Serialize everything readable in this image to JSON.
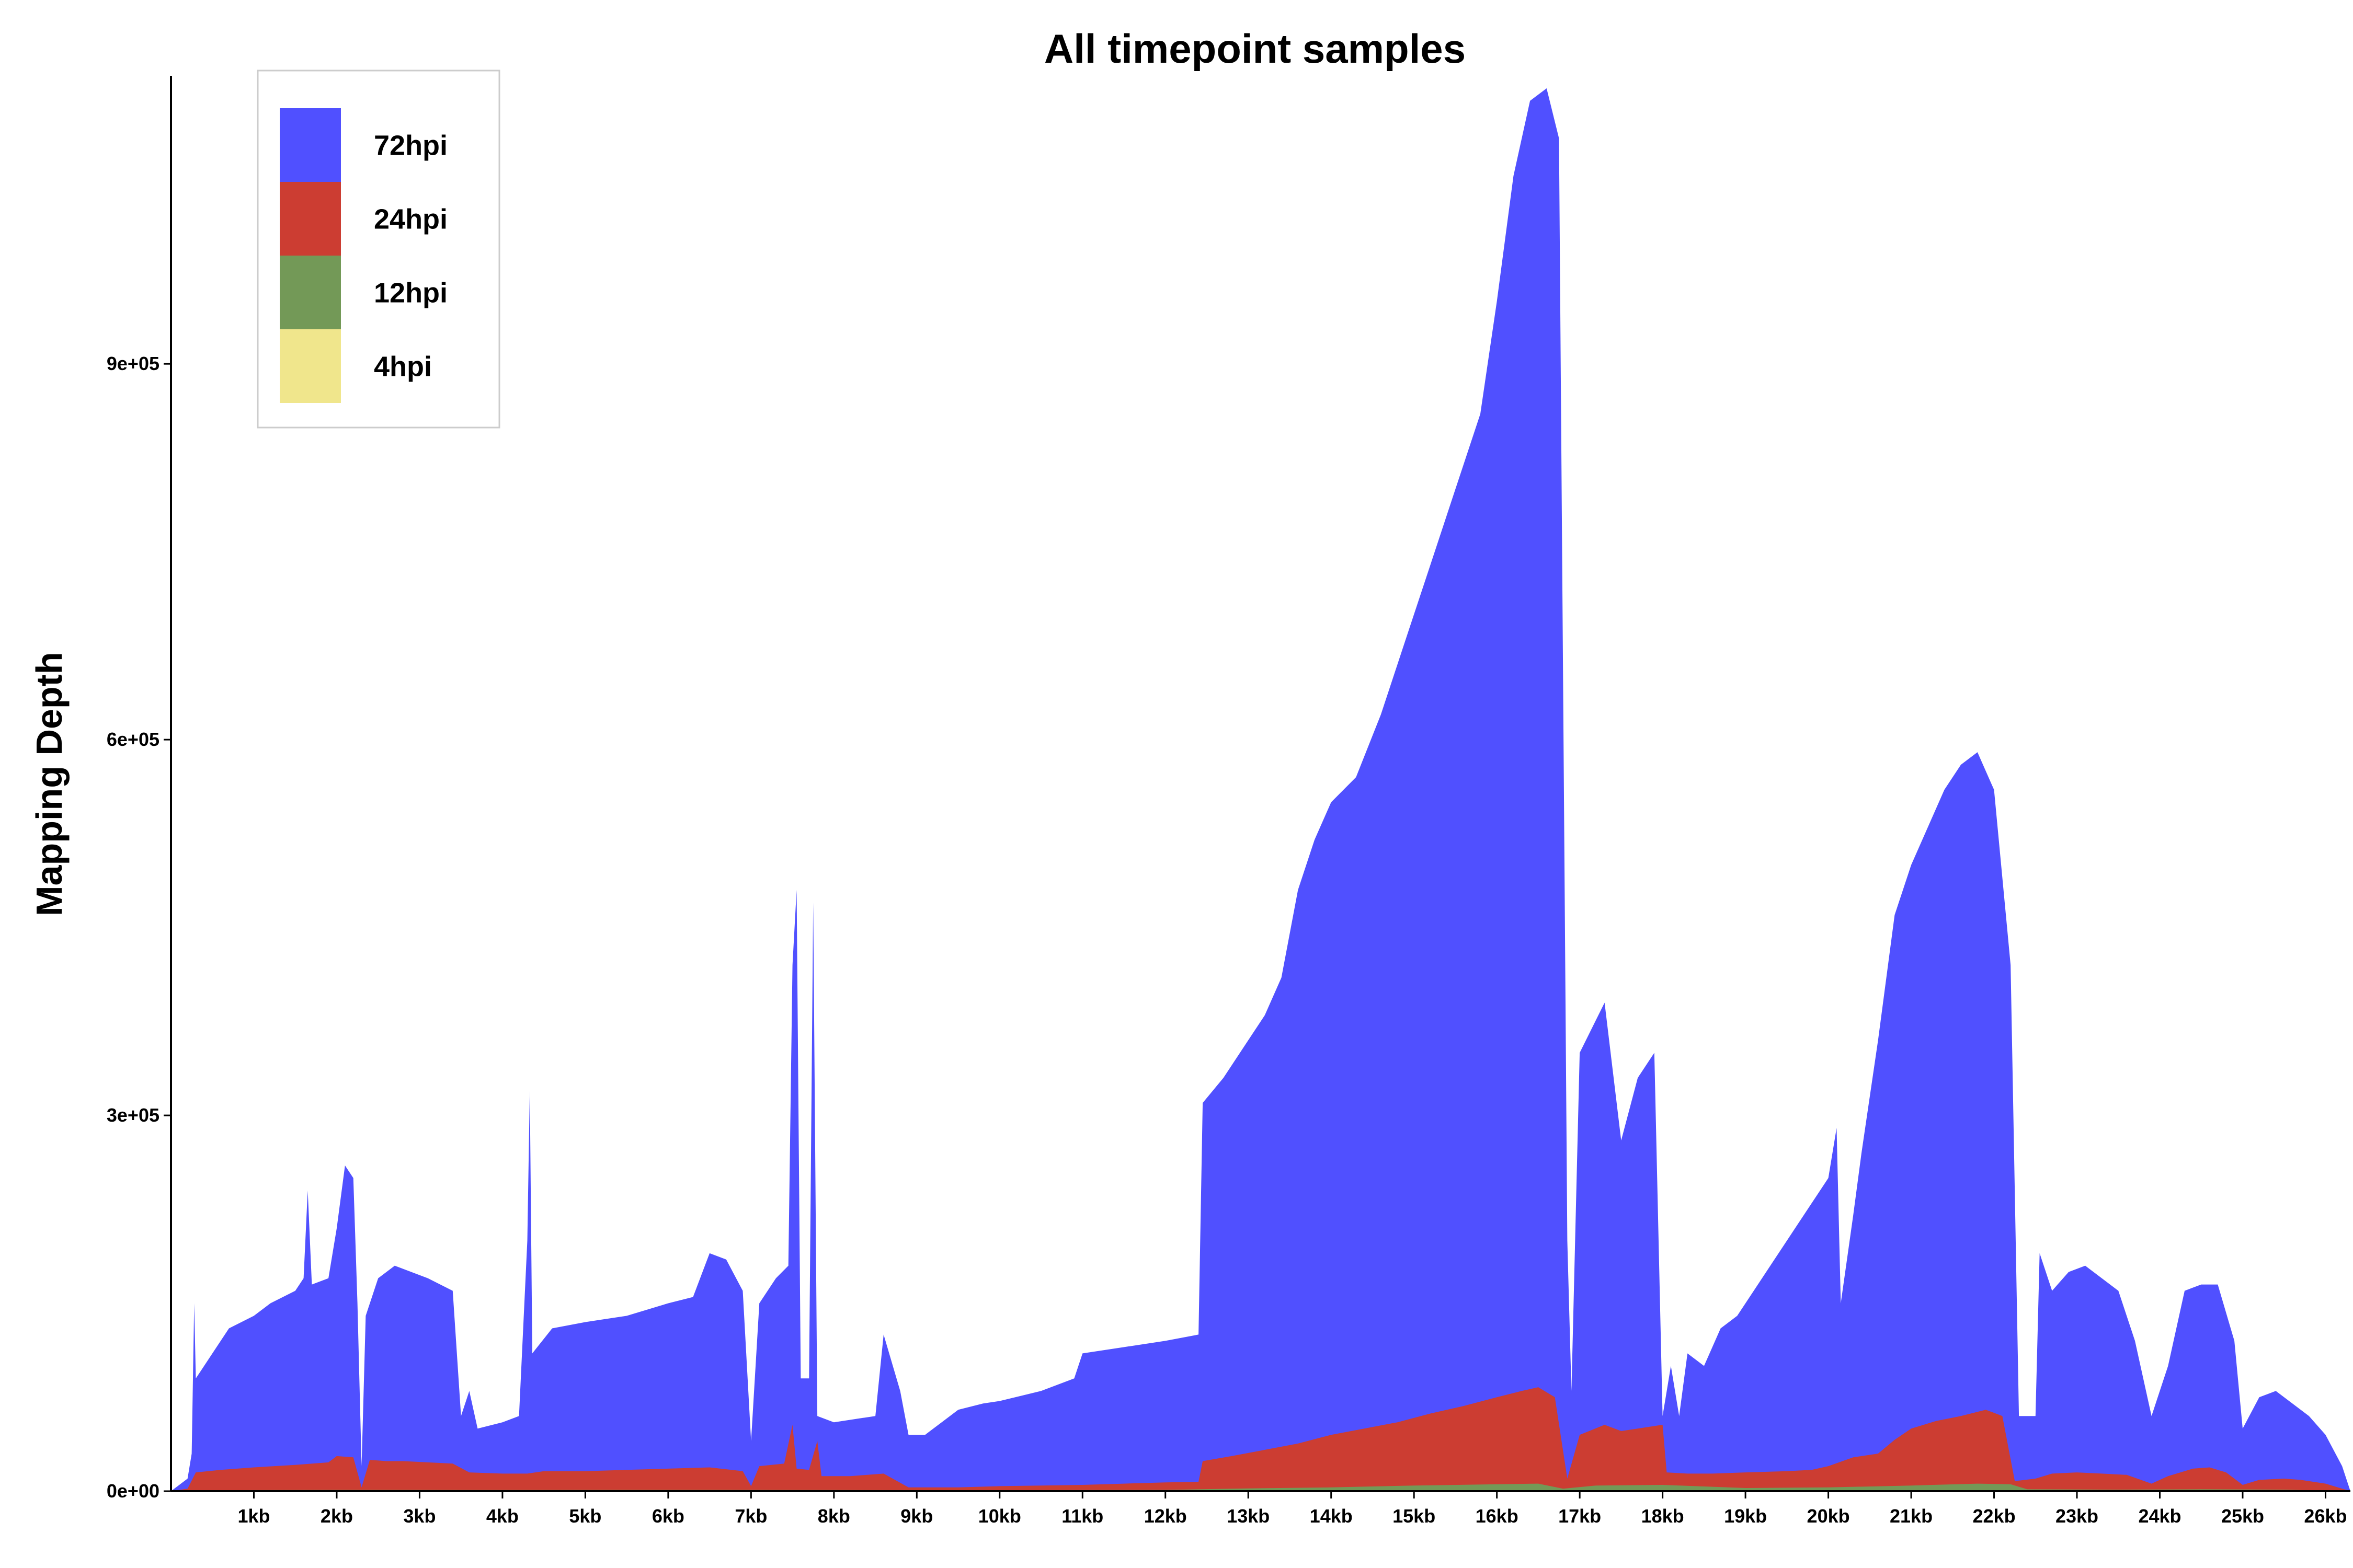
{
  "chart_data": {
    "type": "area",
    "title": "All timepoint samples",
    "xlabel": "",
    "ylabel": "Mapping Depth",
    "x_unit": "kb",
    "xlim": [
      0,
      26.3
    ],
    "ylim": [
      0,
      1130000
    ],
    "x_ticks": [
      "1kb",
      "2kb",
      "3kb",
      "4kb",
      "5kb",
      "6kb",
      "7kb",
      "8kb",
      "9kb",
      "10kb",
      "11kb",
      "12kb",
      "13kb",
      "14kb",
      "15kb",
      "16kb",
      "17kb",
      "18kb",
      "19kb",
      "20kb",
      "21kb",
      "22kb",
      "23kb",
      "24kb",
      "25kb",
      "26kb"
    ],
    "y_ticks": [
      {
        "value": 0,
        "label": "0e+00"
      },
      {
        "value": 300000,
        "label": "3e+05"
      },
      {
        "value": 600000,
        "label": "6e+05"
      },
      {
        "value": 900000,
        "label": "9e+05"
      }
    ],
    "legend_position": "top-left",
    "series": [
      {
        "name": "72hpi",
        "color": "#5050ff",
        "points": [
          [
            0,
            0
          ],
          [
            0.2,
            10000
          ],
          [
            0.25,
            30000
          ],
          [
            0.28,
            150000
          ],
          [
            0.3,
            90000
          ],
          [
            0.5,
            110000
          ],
          [
            0.7,
            130000
          ],
          [
            1.0,
            140000
          ],
          [
            1.2,
            150000
          ],
          [
            1.5,
            160000
          ],
          [
            1.6,
            170000
          ],
          [
            1.65,
            240000
          ],
          [
            1.7,
            165000
          ],
          [
            1.9,
            170000
          ],
          [
            2.0,
            210000
          ],
          [
            2.1,
            260000
          ],
          [
            2.2,
            250000
          ],
          [
            2.25,
            150000
          ],
          [
            2.3,
            20000
          ],
          [
            2.35,
            140000
          ],
          [
            2.5,
            170000
          ],
          [
            2.7,
            180000
          ],
          [
            2.9,
            175000
          ],
          [
            3.1,
            170000
          ],
          [
            3.4,
            160000
          ],
          [
            3.5,
            60000
          ],
          [
            3.6,
            80000
          ],
          [
            3.7,
            50000
          ],
          [
            4.0,
            55000
          ],
          [
            4.2,
            60000
          ],
          [
            4.3,
            200000
          ],
          [
            4.33,
            320000
          ],
          [
            4.36,
            110000
          ],
          [
            4.6,
            130000
          ],
          [
            5.0,
            135000
          ],
          [
            5.5,
            140000
          ],
          [
            6.0,
            150000
          ],
          [
            6.3,
            155000
          ],
          [
            6.5,
            190000
          ],
          [
            6.7,
            185000
          ],
          [
            6.9,
            160000
          ],
          [
            7.0,
            40000
          ],
          [
            7.1,
            150000
          ],
          [
            7.3,
            170000
          ],
          [
            7.45,
            180000
          ],
          [
            7.5,
            420000
          ],
          [
            7.55,
            480000
          ],
          [
            7.6,
            90000
          ],
          [
            7.7,
            90000
          ],
          [
            7.75,
            470000
          ],
          [
            7.8,
            60000
          ],
          [
            8.0,
            55000
          ],
          [
            8.5,
            60000
          ],
          [
            8.6,
            125000
          ],
          [
            8.8,
            80000
          ],
          [
            8.9,
            45000
          ],
          [
            9.1,
            45000
          ],
          [
            9.3,
            55000
          ],
          [
            9.5,
            65000
          ],
          [
            9.8,
            70000
          ],
          [
            10.0,
            72000
          ],
          [
            10.5,
            80000
          ],
          [
            10.9,
            90000
          ],
          [
            11.0,
            110000
          ],
          [
            11.5,
            115000
          ],
          [
            12.0,
            120000
          ],
          [
            12.4,
            125000
          ],
          [
            12.45,
            310000
          ],
          [
            12.7,
            330000
          ],
          [
            13.0,
            360000
          ],
          [
            13.2,
            380000
          ],
          [
            13.4,
            410000
          ],
          [
            13.6,
            480000
          ],
          [
            13.8,
            520000
          ],
          [
            14.0,
            550000
          ],
          [
            14.3,
            570000
          ],
          [
            14.6,
            620000
          ],
          [
            14.9,
            680000
          ],
          [
            15.2,
            740000
          ],
          [
            15.5,
            800000
          ],
          [
            15.8,
            860000
          ],
          [
            16.0,
            950000
          ],
          [
            16.2,
            1050000
          ],
          [
            16.4,
            1110000
          ],
          [
            16.6,
            1120000
          ],
          [
            16.75,
            1080000
          ],
          [
            16.85,
            200000
          ],
          [
            16.9,
            80000
          ],
          [
            17.0,
            350000
          ],
          [
            17.3,
            390000
          ],
          [
            17.5,
            280000
          ],
          [
            17.7,
            330000
          ],
          [
            17.9,
            350000
          ],
          [
            18.0,
            60000
          ],
          [
            18.1,
            100000
          ],
          [
            18.2,
            60000
          ],
          [
            18.3,
            110000
          ],
          [
            18.5,
            100000
          ],
          [
            18.7,
            130000
          ],
          [
            18.9,
            140000
          ],
          [
            19.2,
            170000
          ],
          [
            19.5,
            200000
          ],
          [
            19.8,
            230000
          ],
          [
            20.0,
            250000
          ],
          [
            20.1,
            290000
          ],
          [
            20.15,
            150000
          ],
          [
            20.3,
            220000
          ],
          [
            20.4,
            270000
          ],
          [
            20.6,
            360000
          ],
          [
            20.8,
            460000
          ],
          [
            21.0,
            500000
          ],
          [
            21.2,
            530000
          ],
          [
            21.4,
            560000
          ],
          [
            21.6,
            580000
          ],
          [
            21.8,
            590000
          ],
          [
            22.0,
            560000
          ],
          [
            22.2,
            420000
          ],
          [
            22.3,
            60000
          ],
          [
            22.5,
            60000
          ],
          [
            22.55,
            190000
          ],
          [
            22.7,
            160000
          ],
          [
            22.9,
            175000
          ],
          [
            23.1,
            180000
          ],
          [
            23.3,
            170000
          ],
          [
            23.5,
            160000
          ],
          [
            23.7,
            120000
          ],
          [
            23.9,
            60000
          ],
          [
            24.1,
            100000
          ],
          [
            24.3,
            160000
          ],
          [
            24.5,
            165000
          ],
          [
            24.7,
            165000
          ],
          [
            24.9,
            120000
          ],
          [
            25.0,
            50000
          ],
          [
            25.2,
            75000
          ],
          [
            25.4,
            80000
          ],
          [
            25.6,
            70000
          ],
          [
            25.8,
            60000
          ],
          [
            26.0,
            45000
          ],
          [
            26.2,
            20000
          ],
          [
            26.3,
            0
          ]
        ]
      },
      {
        "name": "24hpi",
        "color": "#cc3d32",
        "points": [
          [
            0,
            0
          ],
          [
            0.2,
            2000
          ],
          [
            0.3,
            15000
          ],
          [
            0.6,
            17000
          ],
          [
            1.0,
            19000
          ],
          [
            1.5,
            21000
          ],
          [
            1.9,
            23000
          ],
          [
            2.0,
            28000
          ],
          [
            2.2,
            27000
          ],
          [
            2.3,
            3000
          ],
          [
            2.4,
            25000
          ],
          [
            2.6,
            24000
          ],
          [
            2.8,
            24000
          ],
          [
            3.1,
            23000
          ],
          [
            3.4,
            22000
          ],
          [
            3.6,
            15000
          ],
          [
            4.0,
            14000
          ],
          [
            4.3,
            14000
          ],
          [
            4.5,
            16000
          ],
          [
            5.0,
            16000
          ],
          [
            5.5,
            17000
          ],
          [
            6.0,
            18000
          ],
          [
            6.5,
            19000
          ],
          [
            6.9,
            16000
          ],
          [
            7.0,
            4000
          ],
          [
            7.1,
            20000
          ],
          [
            7.4,
            22000
          ],
          [
            7.5,
            53000
          ],
          [
            7.55,
            18000
          ],
          [
            7.7,
            17000
          ],
          [
            7.8,
            40000
          ],
          [
            7.85,
            12000
          ],
          [
            8.2,
            12000
          ],
          [
            8.6,
            14000
          ],
          [
            8.9,
            3000
          ],
          [
            9.5,
            3000
          ],
          [
            10.0,
            4000
          ],
          [
            10.5,
            4500
          ],
          [
            11.0,
            5000
          ],
          [
            11.5,
            6000
          ],
          [
            12.0,
            7000
          ],
          [
            12.4,
            7500
          ],
          [
            12.45,
            24000
          ],
          [
            12.8,
            28000
          ],
          [
            13.2,
            33000
          ],
          [
            13.6,
            38000
          ],
          [
            14.0,
            45000
          ],
          [
            14.4,
            50000
          ],
          [
            14.8,
            55000
          ],
          [
            15.2,
            62000
          ],
          [
            15.6,
            68000
          ],
          [
            16.0,
            75000
          ],
          [
            16.3,
            80000
          ],
          [
            16.5,
            83000
          ],
          [
            16.7,
            75000
          ],
          [
            16.85,
            10000
          ],
          [
            17.0,
            45000
          ],
          [
            17.3,
            53000
          ],
          [
            17.5,
            48000
          ],
          [
            17.7,
            50000
          ],
          [
            18.0,
            53000
          ],
          [
            18.05,
            15000
          ],
          [
            18.3,
            14000
          ],
          [
            18.6,
            14000
          ],
          [
            19.0,
            15000
          ],
          [
            19.5,
            16000
          ],
          [
            19.8,
            17000
          ],
          [
            20.0,
            20000
          ],
          [
            20.3,
            27000
          ],
          [
            20.6,
            30000
          ],
          [
            20.8,
            41000
          ],
          [
            21.0,
            50000
          ],
          [
            21.3,
            56000
          ],
          [
            21.6,
            60000
          ],
          [
            21.9,
            65000
          ],
          [
            22.1,
            60000
          ],
          [
            22.25,
            8000
          ],
          [
            22.5,
            10000
          ],
          [
            22.7,
            14000
          ],
          [
            23.0,
            15000
          ],
          [
            23.3,
            14000
          ],
          [
            23.6,
            13000
          ],
          [
            23.9,
            6000
          ],
          [
            24.1,
            12000
          ],
          [
            24.4,
            18000
          ],
          [
            24.6,
            19000
          ],
          [
            24.8,
            15000
          ],
          [
            25.0,
            5000
          ],
          [
            25.2,
            9000
          ],
          [
            25.5,
            10000
          ],
          [
            25.7,
            9000
          ],
          [
            26.0,
            6000
          ],
          [
            26.3,
            0
          ]
        ]
      },
      {
        "name": "12hpi",
        "color": "#739957",
        "points": [
          [
            0,
            0
          ],
          [
            0.5,
            800
          ],
          [
            2.0,
            1000
          ],
          [
            4.0,
            900
          ],
          [
            6.0,
            1000
          ],
          [
            8.0,
            900
          ],
          [
            10.0,
            800
          ],
          [
            12.0,
            1000
          ],
          [
            12.4,
            1500
          ],
          [
            13.0,
            2200
          ],
          [
            14.0,
            3000
          ],
          [
            15.0,
            4500
          ],
          [
            16.0,
            5500
          ],
          [
            16.5,
            6000
          ],
          [
            16.8,
            2000
          ],
          [
            17.2,
            4500
          ],
          [
            18.0,
            5000
          ],
          [
            19.0,
            2500
          ],
          [
            20.0,
            3000
          ],
          [
            21.0,
            4500
          ],
          [
            21.8,
            6000
          ],
          [
            22.2,
            5500
          ],
          [
            22.4,
            1500
          ],
          [
            23.5,
            1200
          ],
          [
            24.5,
            1500
          ],
          [
            25.5,
            1200
          ],
          [
            26.3,
            0
          ]
        ]
      },
      {
        "name": "4hpi",
        "color": "#f0e68c",
        "points": [
          [
            0,
            0
          ],
          [
            2.0,
            200
          ],
          [
            6.0,
            200
          ],
          [
            10.0,
            200
          ],
          [
            13.0,
            300
          ],
          [
            15.0,
            500
          ],
          [
            16.0,
            700
          ],
          [
            17.0,
            500
          ],
          [
            19.0,
            300
          ],
          [
            21.0,
            500
          ],
          [
            22.0,
            600
          ],
          [
            24.0,
            300
          ],
          [
            26.3,
            0
          ]
        ]
      }
    ]
  }
}
